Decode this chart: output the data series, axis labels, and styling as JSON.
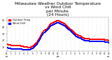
{
  "title": "Milwaukee Weather Outdoor Temperature\nvs Wind Chill\nper Minute\n(24 Hours)",
  "title_fontsize": 4.2,
  "title_color": "#000000",
  "background_color": "#ffffff",
  "grid_color": "#cccccc",
  "ylabel_fontsize": 3.5,
  "xlabel_fontsize": 3.0,
  "tick_fontsize": 3.0,
  "series": [
    {
      "label": "Outdoor Temp",
      "color": "#ff0000",
      "marker": "s",
      "markersize": 0.8,
      "x": [
        0,
        5,
        10,
        15,
        20,
        25,
        30,
        35,
        40,
        50,
        60,
        70,
        80,
        90,
        100,
        110,
        120,
        130,
        140,
        150,
        160,
        170,
        180,
        190,
        200,
        210,
        220,
        230,
        240,
        250,
        260,
        270,
        280,
        290,
        300,
        310,
        320,
        330,
        340,
        350,
        360,
        370,
        380,
        390,
        400,
        410,
        420,
        430,
        440,
        450,
        460,
        470,
        480,
        490,
        500,
        510,
        520,
        530,
        540,
        550,
        560,
        570,
        580,
        590,
        600,
        610,
        620,
        630,
        640,
        650,
        660,
        670,
        680,
        690,
        700,
        710,
        720,
        730,
        740,
        750,
        760,
        770,
        780,
        790,
        800,
        810,
        820,
        830,
        840,
        850,
        860,
        870,
        880,
        890,
        900,
        910,
        920,
        930,
        940,
        950,
        960,
        970,
        980,
        990,
        1000,
        1010,
        1020,
        1030,
        1040,
        1050,
        1060,
        1070,
        1080,
        1090,
        1100,
        1110,
        1120,
        1130,
        1140,
        1150,
        1160,
        1170,
        1180,
        1190,
        1200,
        1210,
        1220,
        1230,
        1240,
        1250,
        1260,
        1270,
        1280,
        1290,
        1300,
        1310,
        1320,
        1330,
        1340,
        1350,
        1360,
        1370,
        1380,
        1390,
        1400,
        1410,
        1420,
        1430
      ],
      "y": [
        1.5,
        1.5,
        1.5,
        1.5,
        1.4,
        1.4,
        1.4,
        1.4,
        1.4,
        1.4,
        1.3,
        1.3,
        1.3,
        1.3,
        1.3,
        1.3,
        1.3,
        1.3,
        1.3,
        1.3,
        1.3,
        1.3,
        1.3,
        1.3,
        1.2,
        1.2,
        1.2,
        1.2,
        1.1,
        1.1,
        1.1,
        1.1,
        1.1,
        1.1,
        1.0,
        1.0,
        1.0,
        1.0,
        1.1,
        1.1,
        1.2,
        1.2,
        1.3,
        1.4,
        1.5,
        1.6,
        1.7,
        1.8,
        2.0,
        2.2,
        2.3,
        2.5,
        2.7,
        2.9,
        3.1,
        3.2,
        3.4,
        3.5,
        3.6,
        3.7,
        3.8,
        3.9,
        4.1,
        4.2,
        4.4,
        4.5,
        4.6,
        4.6,
        4.7,
        4.7,
        4.8,
        4.8,
        4.9,
        4.9,
        5.0,
        5.0,
        5.0,
        5.0,
        4.9,
        4.9,
        4.8,
        4.8,
        4.7,
        4.7,
        4.6,
        4.6,
        4.5,
        4.4,
        4.3,
        4.2,
        4.1,
        4.0,
        3.9,
        3.8,
        3.7,
        3.6,
        3.5,
        3.4,
        3.3,
        3.2,
        3.1,
        3.0,
        2.9,
        2.9,
        2.8,
        2.8,
        2.7,
        2.7,
        2.7,
        2.6,
        2.5,
        2.5,
        2.4,
        2.4,
        2.3,
        2.3,
        2.3,
        2.3,
        2.3,
        2.3,
        2.2,
        2.2,
        2.2,
        2.2,
        2.2,
        2.2,
        2.2,
        2.2,
        2.2,
        2.2,
        2.2,
        2.2,
        2.2,
        2.2,
        2.2,
        2.2,
        2.2,
        2.2,
        2.2,
        2.2,
        2.2,
        2.2,
        2.1,
        2.1,
        2.1,
        2.1,
        2.1,
        2.0
      ]
    },
    {
      "label": "Wind Chill",
      "color": "#0000ff",
      "marker": "s",
      "markersize": 0.8,
      "x": [
        0,
        5,
        10,
        15,
        20,
        25,
        30,
        35,
        40,
        50,
        60,
        70,
        80,
        90,
        100,
        110,
        120,
        130,
        140,
        150,
        160,
        170,
        180,
        190,
        200,
        210,
        220,
        230,
        240,
        250,
        260,
        270,
        280,
        290,
        300,
        310,
        320,
        330,
        340,
        350,
        360,
        370,
        380,
        390,
        400,
        410,
        420,
        430,
        440,
        450,
        460,
        470,
        480,
        490,
        500,
        510,
        520,
        530,
        540,
        550,
        560,
        570,
        580,
        590,
        600,
        610,
        620,
        630,
        640,
        650,
        660,
        670,
        680,
        690,
        700,
        710,
        720,
        730,
        740,
        750,
        760,
        770,
        780,
        790,
        800,
        810,
        820,
        830,
        840,
        850,
        860,
        870,
        880,
        890,
        900,
        910,
        920,
        930,
        940,
        950,
        960,
        970,
        980,
        990,
        1000,
        1010,
        1020,
        1030,
        1040,
        1050,
        1060,
        1070,
        1080,
        1090,
        1100,
        1110,
        1120,
        1130,
        1140,
        1150,
        1160,
        1170,
        1180,
        1190,
        1200,
        1210,
        1220,
        1230,
        1240,
        1250,
        1260,
        1270,
        1280,
        1290,
        1300,
        1310,
        1320,
        1330,
        1340,
        1350,
        1360,
        1370,
        1380,
        1390,
        1400,
        1410,
        1420,
        1430
      ],
      "y": [
        1.0,
        1.0,
        1.0,
        1.0,
        0.9,
        0.9,
        0.9,
        0.9,
        0.9,
        0.9,
        0.8,
        0.8,
        0.8,
        0.8,
        0.8,
        0.8,
        0.8,
        0.8,
        0.8,
        0.8,
        0.8,
        0.8,
        0.8,
        0.8,
        0.8,
        0.8,
        0.7,
        0.7,
        0.7,
        0.7,
        0.7,
        0.7,
        0.7,
        0.7,
        0.7,
        0.7,
        0.7,
        0.7,
        0.8,
        0.8,
        0.9,
        0.9,
        1.0,
        1.1,
        1.2,
        1.3,
        1.4,
        1.5,
        1.7,
        1.9,
        2.0,
        2.2,
        2.4,
        2.6,
        2.8,
        2.9,
        3.1,
        3.2,
        3.3,
        3.4,
        3.5,
        3.6,
        3.8,
        3.9,
        4.1,
        4.2,
        4.3,
        4.3,
        4.4,
        4.4,
        4.5,
        4.5,
        4.6,
        4.6,
        4.7,
        4.7,
        4.7,
        4.7,
        4.6,
        4.6,
        4.5,
        4.5,
        4.4,
        4.4,
        4.3,
        4.3,
        4.2,
        4.1,
        4.0,
        3.9,
        3.8,
        3.7,
        3.6,
        3.5,
        3.4,
        3.3,
        3.2,
        3.1,
        3.0,
        2.9,
        2.8,
        2.7,
        2.6,
        2.6,
        2.5,
        2.5,
        2.4,
        2.4,
        2.4,
        2.3,
        2.2,
        2.2,
        2.1,
        2.1,
        2.0,
        2.0,
        2.0,
        2.0,
        2.0,
        2.0,
        1.9,
        1.9,
        1.9,
        1.9,
        1.9,
        1.9,
        1.9,
        1.9,
        1.9,
        1.9,
        1.9,
        1.9,
        1.9,
        1.9,
        1.9,
        1.9,
        1.9,
        1.9,
        1.9,
        1.9,
        1.9,
        1.9,
        1.8,
        1.8,
        1.8,
        1.8,
        1.8,
        1.7
      ]
    }
  ],
  "xlim": [
    0,
    1430
  ],
  "ylim": [
    0.5,
    5.5
  ],
  "yticks": [
    1,
    2,
    3,
    4,
    5
  ],
  "ytick_labels": [
    "1°",
    "2°",
    "3°",
    "4°",
    "5°"
  ],
  "xtick_positions": [
    0,
    60,
    120,
    180,
    240,
    300,
    360,
    420,
    480,
    540,
    600,
    660,
    720,
    780,
    840,
    900,
    960,
    1020,
    1080,
    1140,
    1200,
    1260,
    1320,
    1380,
    1430
  ],
  "xtick_labels": [
    "12\nam",
    "1",
    "2",
    "3",
    "4",
    "5",
    "6",
    "7",
    "8",
    "9",
    "10",
    "11",
    "12\npm",
    "1",
    "2",
    "3",
    "4",
    "5",
    "6",
    "7",
    "8",
    "9",
    "10",
    "11",
    "12\nam"
  ],
  "legend_labels": [
    "Outdoor Temp",
    "Wind Chill"
  ],
  "legend_colors": [
    "#ff0000",
    "#0000ff"
  ],
  "vgrid_positions": [
    0,
    60,
    120,
    180,
    240,
    300,
    360,
    420,
    480,
    540,
    600,
    660,
    720,
    780,
    840,
    900,
    960,
    1020,
    1080,
    1140,
    1200,
    1260,
    1320,
    1380,
    1430
  ]
}
